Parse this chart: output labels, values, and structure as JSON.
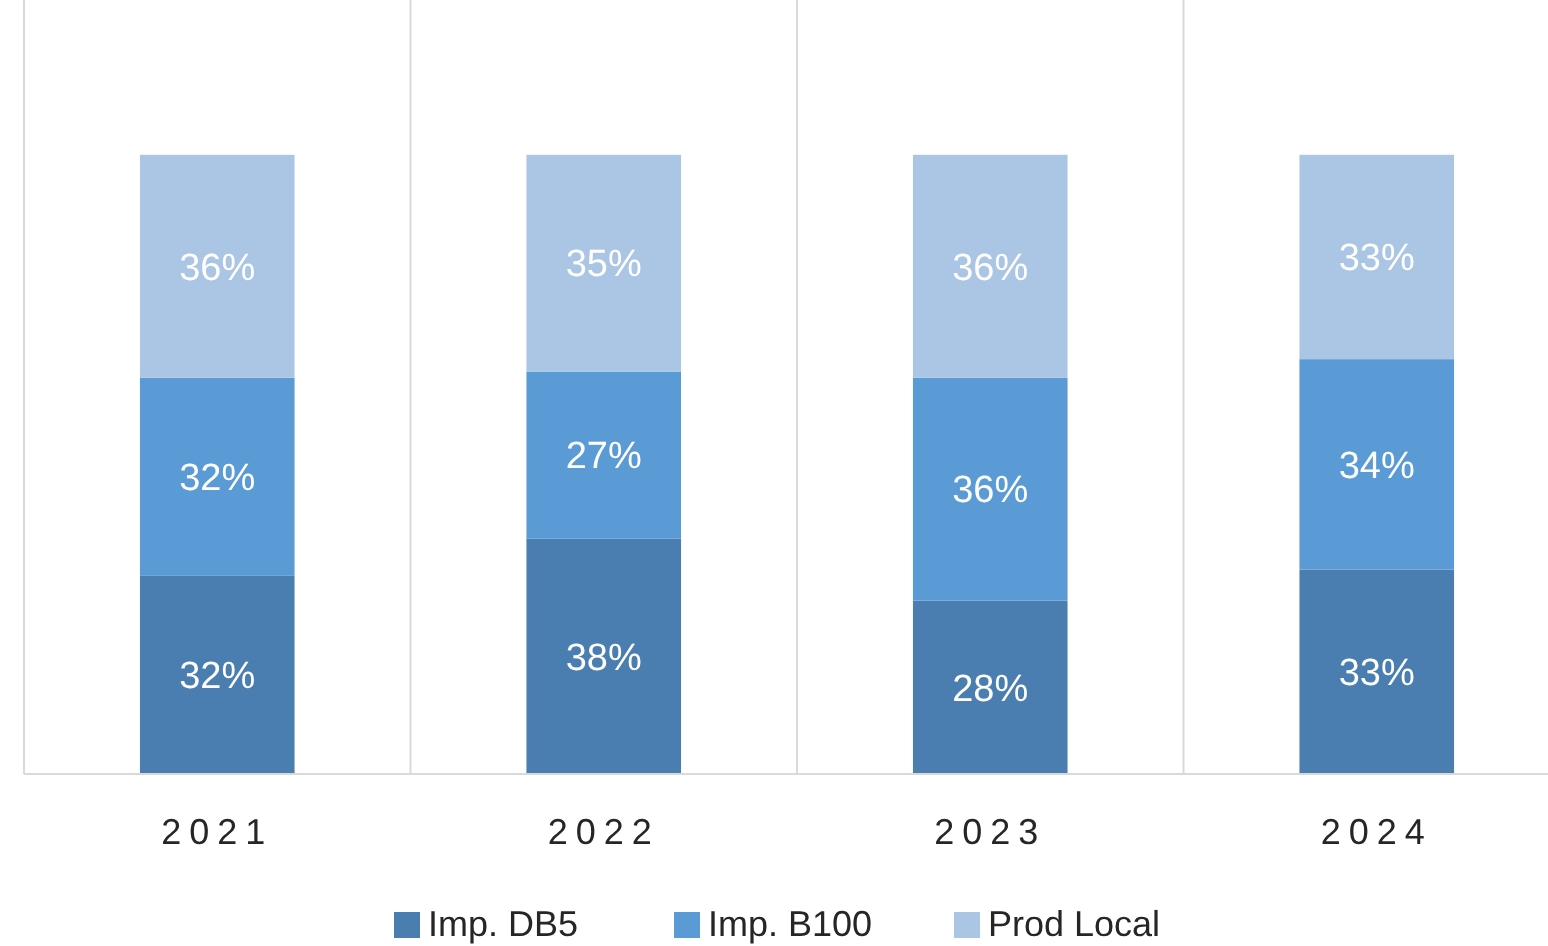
{
  "chart_data": {
    "type": "bar",
    "stacked": true,
    "categories": [
      "2021",
      "2022",
      "2023",
      "2024"
    ],
    "series": [
      {
        "name": "Imp. DB5",
        "color": "#4a7eb0",
        "values": [
          32,
          38,
          28,
          33
        ],
        "value_labels": [
          "32%",
          "38%",
          "28%",
          "33%"
        ]
      },
      {
        "name": "Imp. B100",
        "color": "#5b9bd5",
        "values": [
          32,
          27,
          36,
          34
        ],
        "value_labels": [
          "32%",
          "27%",
          "36%",
          "34%"
        ]
      },
      {
        "name": "Prod Local",
        "color": "#abc5e5",
        "values": [
          36,
          35,
          36,
          33
        ],
        "value_labels": [
          "36%",
          "35%",
          "36%",
          "33%"
        ]
      }
    ],
    "grid": "x",
    "legend": "bottom"
  }
}
